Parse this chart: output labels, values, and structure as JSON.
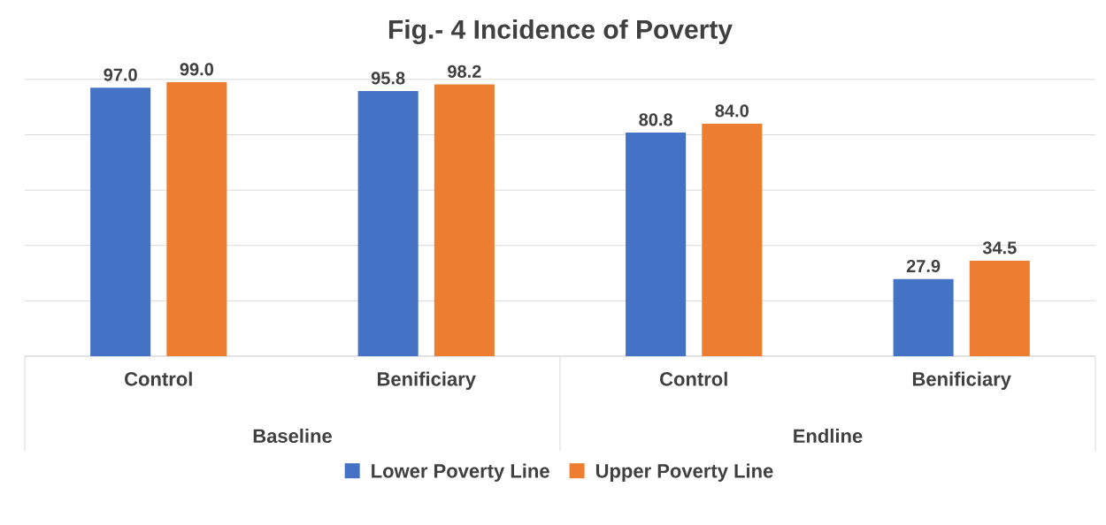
{
  "chart_data": {
    "type": "bar",
    "title": "Fig.- 4 Incidence of Poverty",
    "categories": [
      "Control",
      "Benificiary",
      "Control",
      "Benificiary"
    ],
    "series": [
      {
        "name": "Lower Poverty Line",
        "color": "#4472c4",
        "values": [
          97.0,
          95.8,
          80.8,
          27.9
        ],
        "value_labels": [
          "97.0",
          "95.8",
          "80.8",
          "27.9"
        ]
      },
      {
        "name": "Upper Poverty Line",
        "color": "#ed7d31",
        "values": [
          99.0,
          98.2,
          84.0,
          34.5
        ],
        "value_labels": [
          "99.0",
          "98.2",
          "84.0",
          "34.5"
        ]
      }
    ],
    "annotations": [
      "Baseline",
      "Endline"
    ],
    "grid": "y",
    "tick_labels": "x",
    "legend": "bottom"
  }
}
